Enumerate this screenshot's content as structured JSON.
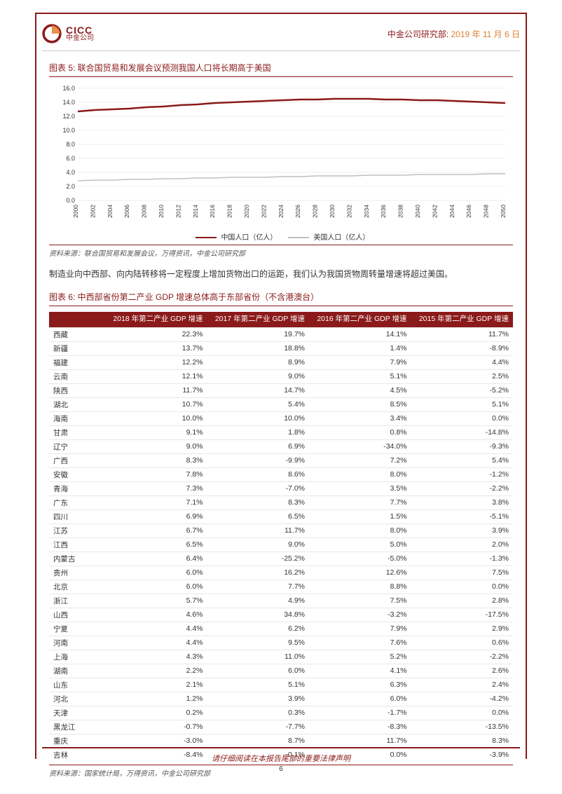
{
  "header": {
    "logo_en": "CICC",
    "logo_cn": "中金公司",
    "dept": "中金公司研究部:",
    "date": "2019 年 11 月 6 日"
  },
  "fig5": {
    "title": "图表 5: 联合国贸易和发展会议预测我国人口将长期高于美国",
    "type": "line",
    "background_color": "#ffffff",
    "grid_color": "#d9d9d9",
    "ylim": [
      0,
      16
    ],
    "ytick_step": 2,
    "ylabels": [
      "0.0",
      "2.0",
      "4.0",
      "6.0",
      "8.0",
      "10.0",
      "12.0",
      "14.0",
      "16.0"
    ],
    "xticks": [
      "2000",
      "2002",
      "2004",
      "2006",
      "2008",
      "2010",
      "2012",
      "2014",
      "2016",
      "2018",
      "2020",
      "2022",
      "2024",
      "2026",
      "2028",
      "2030",
      "2032",
      "2034",
      "2036",
      "2038",
      "2040",
      "2042",
      "2044",
      "2046",
      "2048",
      "2050"
    ],
    "series": [
      {
        "name": "中国人口（亿人）",
        "color": "#8b1a1a",
        "line_width": 2.5,
        "values": [
          12.7,
          12.9,
          13.0,
          13.1,
          13.3,
          13.4,
          13.6,
          13.7,
          13.9,
          14.0,
          14.1,
          14.2,
          14.3,
          14.4,
          14.4,
          14.5,
          14.5,
          14.5,
          14.4,
          14.4,
          14.3,
          14.3,
          14.2,
          14.1,
          14.0,
          13.9
        ]
      },
      {
        "name": "美国人口（亿人）",
        "color": "#bfbfbf",
        "line_width": 1.5,
        "values": [
          2.8,
          2.9,
          2.9,
          3.0,
          3.0,
          3.1,
          3.1,
          3.2,
          3.2,
          3.3,
          3.3,
          3.3,
          3.4,
          3.4,
          3.5,
          3.5,
          3.5,
          3.6,
          3.6,
          3.6,
          3.7,
          3.7,
          3.7,
          3.7,
          3.8,
          3.8
        ]
      }
    ],
    "source": "资料来源：联合国贸易和发展会议，万得资讯，中金公司研究部"
  },
  "body_para": "制造业向中西部、向内陆转移将一定程度上增加货物出口的运距，我们认为我国货物周转量增速将超过美国。",
  "fig6": {
    "title": "图表 6: 中西部省份第二产业 GDP 增速总体高于东部省份（不含港澳台）",
    "columns": [
      "",
      "2018 年第二产业 GDP 增速",
      "2017 年第二产业 GDP 增速",
      "2016 年第二产业 GDP 增速",
      "2015 年第二产业 GDP 增速"
    ],
    "rows": [
      [
        "西藏",
        "22.3%",
        "19.7%",
        "14.1%",
        "11.7%"
      ],
      [
        "新疆",
        "13.7%",
        "18.8%",
        "1.4%",
        "-8.9%"
      ],
      [
        "福建",
        "12.2%",
        "8.9%",
        "7.9%",
        "4.4%"
      ],
      [
        "云南",
        "12.1%",
        "9.0%",
        "5.1%",
        "2.5%"
      ],
      [
        "陕西",
        "11.7%",
        "14.7%",
        "4.5%",
        "-5.2%"
      ],
      [
        "湖北",
        "10.7%",
        "5.4%",
        "8.5%",
        "5.1%"
      ],
      [
        "海南",
        "10.0%",
        "10.0%",
        "3.4%",
        "0.0%"
      ],
      [
        "甘肃",
        "9.1%",
        "1.8%",
        "0.8%",
        "-14.8%"
      ],
      [
        "辽宁",
        "9.0%",
        "6.9%",
        "-34.0%",
        "-9.3%"
      ],
      [
        "广西",
        "8.3%",
        "-9.9%",
        "7.2%",
        "5.4%"
      ],
      [
        "安徽",
        "7.8%",
        "8.6%",
        "8.0%",
        "-1.2%"
      ],
      [
        "青海",
        "7.3%",
        "-7.0%",
        "3.5%",
        "-2.2%"
      ],
      [
        "广东",
        "7.1%",
        "8.3%",
        "7.7%",
        "3.8%"
      ],
      [
        "四川",
        "6.9%",
        "6.5%",
        "1.5%",
        "-5.1%"
      ],
      [
        "江苏",
        "6.7%",
        "11.7%",
        "8.0%",
        "3.9%"
      ],
      [
        "江西",
        "6.5%",
        "9.0%",
        "5.0%",
        "2.0%"
      ],
      [
        "内蒙古",
        "6.4%",
        "-25.2%",
        "-5.0%",
        "-1.3%"
      ],
      [
        "贵州",
        "6.0%",
        "16.2%",
        "12.6%",
        "7.5%"
      ],
      [
        "北京",
        "6.0%",
        "7.7%",
        "8.8%",
        "0.0%"
      ],
      [
        "浙江",
        "5.7%",
        "4.9%",
        "7.5%",
        "2.8%"
      ],
      [
        "山西",
        "4.6%",
        "34.8%",
        "-3.2%",
        "-17.5%"
      ],
      [
        "宁夏",
        "4.4%",
        "6.2%",
        "7.9%",
        "2.9%"
      ],
      [
        "河南",
        "4.4%",
        "9.5%",
        "7.6%",
        "0.6%"
      ],
      [
        "上海",
        "4.3%",
        "11.0%",
        "5.2%",
        "-2.2%"
      ],
      [
        "湖南",
        "2.2%",
        "6.0%",
        "4.1%",
        "2.6%"
      ],
      [
        "山东",
        "2.1%",
        "5.1%",
        "6.3%",
        "2.4%"
      ],
      [
        "河北",
        "1.2%",
        "3.9%",
        "6.0%",
        "-4.2%"
      ],
      [
        "天津",
        "0.2%",
        "0.3%",
        "-1.7%",
        "0.0%"
      ],
      [
        "黑龙江",
        "-0.7%",
        "-7.7%",
        "-8.3%",
        "-13.5%"
      ],
      [
        "重庆",
        "-3.0%",
        "8.7%",
        "11.7%",
        "8.3%"
      ],
      [
        "吉林",
        "-8.4%",
        "-0.1%",
        "0.0%",
        "-3.9%"
      ]
    ],
    "source": "资料来源：国家统计局，万得资讯，中金公司研究部"
  },
  "footer": {
    "text": "请仔细阅读在本报告尾部的重要法律声明",
    "page": "6"
  }
}
